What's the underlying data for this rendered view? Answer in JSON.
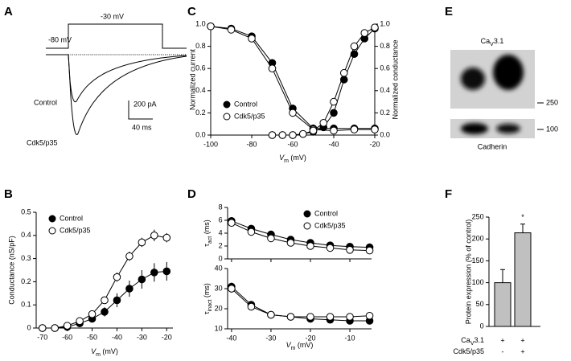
{
  "panel_labels": [
    "A",
    "B",
    "C",
    "D",
    "E",
    "F"
  ],
  "trace_panel": {
    "step_labels": [
      "-80 mV",
      "-30 mV"
    ],
    "trace_labels": [
      "Control",
      "Cdk5/p35"
    ],
    "scale_labels": [
      "200 pA",
      "40 ms"
    ]
  },
  "blot_panel": {
    "title": [
      "Ca",
      "V",
      "3.1"
    ],
    "markers": [
      250,
      100
    ],
    "loading_label": "Cadherin"
  },
  "chart_data": [
    {
      "type": "line",
      "ylabel": "Conductance (nS/pF)",
      "xlabel": [
        "V",
        "m",
        " (mV)"
      ],
      "legend": "upper left",
      "x": [
        -70,
        -65,
        -60,
        -55,
        -50,
        -45,
        -40,
        -35,
        -30,
        -25,
        -20
      ],
      "series": [
        {
          "name": "Control",
          "marker": "filled",
          "values": [
            0,
            0,
            0.005,
            0.02,
            0.04,
            0.07,
            0.12,
            0.17,
            0.21,
            0.24,
            0.245
          ],
          "errors": [
            0,
            0,
            0.005,
            0.01,
            0.015,
            0.02,
            0.03,
            0.035,
            0.04,
            0.04,
            0.04
          ]
        },
        {
          "name": "Cdk5/p35",
          "marker": "open",
          "values": [
            0,
            0,
            0.01,
            0.03,
            0.06,
            0.12,
            0.22,
            0.31,
            0.37,
            0.4,
            0.39
          ],
          "errors": [
            0,
            0,
            0.005,
            0.01,
            0.01,
            0.015,
            0.02,
            0.02,
            0.02,
            0.025,
            0.02
          ]
        }
      ],
      "xlim": [
        -72.5,
        -17.5
      ],
      "xticks": [
        -70,
        -60,
        -50,
        -40,
        -30,
        -20
      ],
      "ylim": [
        0,
        0.5
      ],
      "yticks": [
        0,
        0.1,
        0.2,
        0.3,
        0.4,
        0.5
      ]
    },
    {
      "type": "line",
      "ylabel": "Normalized current",
      "y2label": "Normalized conductance",
      "xlabel": [
        "V",
        "m",
        " (mV)"
      ],
      "legend": "lower left",
      "series": [
        {
          "name": "Control",
          "marker": "filled",
          "curves": [
            {
              "x": [
                -100,
                -90,
                -80,
                -70,
                -60,
                -50,
                -40,
                -30,
                -20
              ],
              "values": [
                0.98,
                0.96,
                0.89,
                0.65,
                0.24,
                0.06,
                0.06,
                0.06,
                0.06
              ]
            },
            {
              "x": [
                -70,
                -65,
                -60,
                -55,
                -50,
                -45,
                -40,
                -35,
                -30,
                -25,
                -20
              ],
              "values": [
                0,
                0,
                0,
                0.01,
                0.03,
                0.07,
                0.2,
                0.5,
                0.73,
                0.87,
                0.96
              ],
              "axis": "y2"
            }
          ]
        },
        {
          "name": "Cdk5/p35",
          "marker": "open",
          "curves": [
            {
              "x": [
                -100,
                -90,
                -80,
                -70,
                -60,
                -50,
                -40,
                -30,
                -20
              ],
              "values": [
                0.98,
                0.95,
                0.87,
                0.6,
                0.2,
                0.05,
                0.04,
                0.05,
                0.05
              ]
            },
            {
              "x": [
                -70,
                -65,
                -60,
                -55,
                -50,
                -45,
                -40,
                -35,
                -30,
                -25,
                -20
              ],
              "values": [
                0,
                0,
                0,
                0.01,
                0.04,
                0.11,
                0.3,
                0.56,
                0.8,
                0.92,
                0.97
              ],
              "axis": "y2"
            }
          ]
        }
      ],
      "xlim": [
        -100,
        -20
      ],
      "xticks": [
        -100,
        -80,
        -60,
        -40,
        -20
      ],
      "ylim": [
        0,
        1
      ],
      "yticks": [
        {
          "value": 0,
          "label": "0.0"
        },
        0.2,
        0.4,
        0.6,
        0.8,
        {
          "value": 1,
          "label": "1.0"
        }
      ],
      "y2lim": [
        0,
        1
      ],
      "y2ticks": [
        {
          "value": 0,
          "label": "0.0"
        },
        0.2,
        0.4,
        0.6,
        0.8,
        {
          "value": 1,
          "label": "1.0"
        }
      ]
    },
    {
      "type": "line",
      "ylabel": [
        "τ",
        "act",
        " (ms)"
      ],
      "legend": "upper right",
      "x": [
        -40,
        -35,
        -30,
        -25,
        -20,
        -15,
        -10,
        -5
      ],
      "series": [
        {
          "name": "Control",
          "marker": "filled",
          "values": [
            5.9,
            4.7,
            3.8,
            3,
            2.5,
            2.1,
            1.9,
            1.8
          ],
          "errors": [
            0.4,
            0.3,
            0.2,
            0.2,
            0.2,
            0.2,
            0.2,
            0.2
          ]
        },
        {
          "name": "Cdk5/p35",
          "marker": "open",
          "values": [
            5.6,
            4.2,
            3.2,
            2.5,
            2,
            1.7,
            1.4,
            1.3
          ],
          "errors": [
            0.4,
            0.3,
            0.2,
            0.2,
            0.2,
            0.2,
            0.2,
            0.2
          ]
        }
      ],
      "xlim": [
        -41,
        -4.5
      ],
      "xticks": [
        -40,
        -30,
        -20,
        -10
      ],
      "ylim": [
        0,
        8
      ],
      "yticks": [
        0,
        2,
        4,
        6,
        8
      ]
    },
    {
      "type": "line",
      "ylabel": [
        "τ",
        "inact",
        " (ms)"
      ],
      "xlabel": [
        "V",
        "m",
        " (mV)"
      ],
      "x": [
        -40,
        -35,
        -30,
        -25,
        -20,
        -15,
        -10,
        -5
      ],
      "series": [
        {
          "marker": "filled",
          "values": [
            31,
            22,
            17,
            16,
            15,
            14.5,
            14,
            14
          ],
          "errors": [
            2,
            1,
            1,
            1,
            1,
            1,
            1,
            1
          ]
        },
        {
          "marker": "open",
          "values": [
            30,
            21,
            17,
            16,
            16,
            16,
            16,
            16.5
          ],
          "errors": [
            2,
            1,
            1,
            1,
            1,
            1,
            1,
            1
          ]
        }
      ],
      "xlim": [
        -41,
        -4.5
      ],
      "xticks": [
        -40,
        -30,
        -20,
        -10
      ],
      "ylim": [
        10,
        40
      ],
      "yticks": [
        10,
        20,
        30,
        40
      ]
    },
    {
      "type": "bar",
      "ylabel": "Protein expression (% of control)",
      "color": "#c0c0c0",
      "values": [
        100,
        214
      ],
      "errors": [
        30,
        20
      ],
      "annotation": "*",
      "row_labels": [
        [
          "Ca",
          "V",
          "3.1"
        ],
        [
          "Cdk5/p35"
        ]
      ],
      "rows": [
        [
          "+",
          "+"
        ],
        [
          "-",
          "+"
        ]
      ],
      "ylim": [
        0,
        250
      ],
      "yticks": [
        0,
        50,
        100,
        150,
        200,
        250
      ]
    }
  ]
}
